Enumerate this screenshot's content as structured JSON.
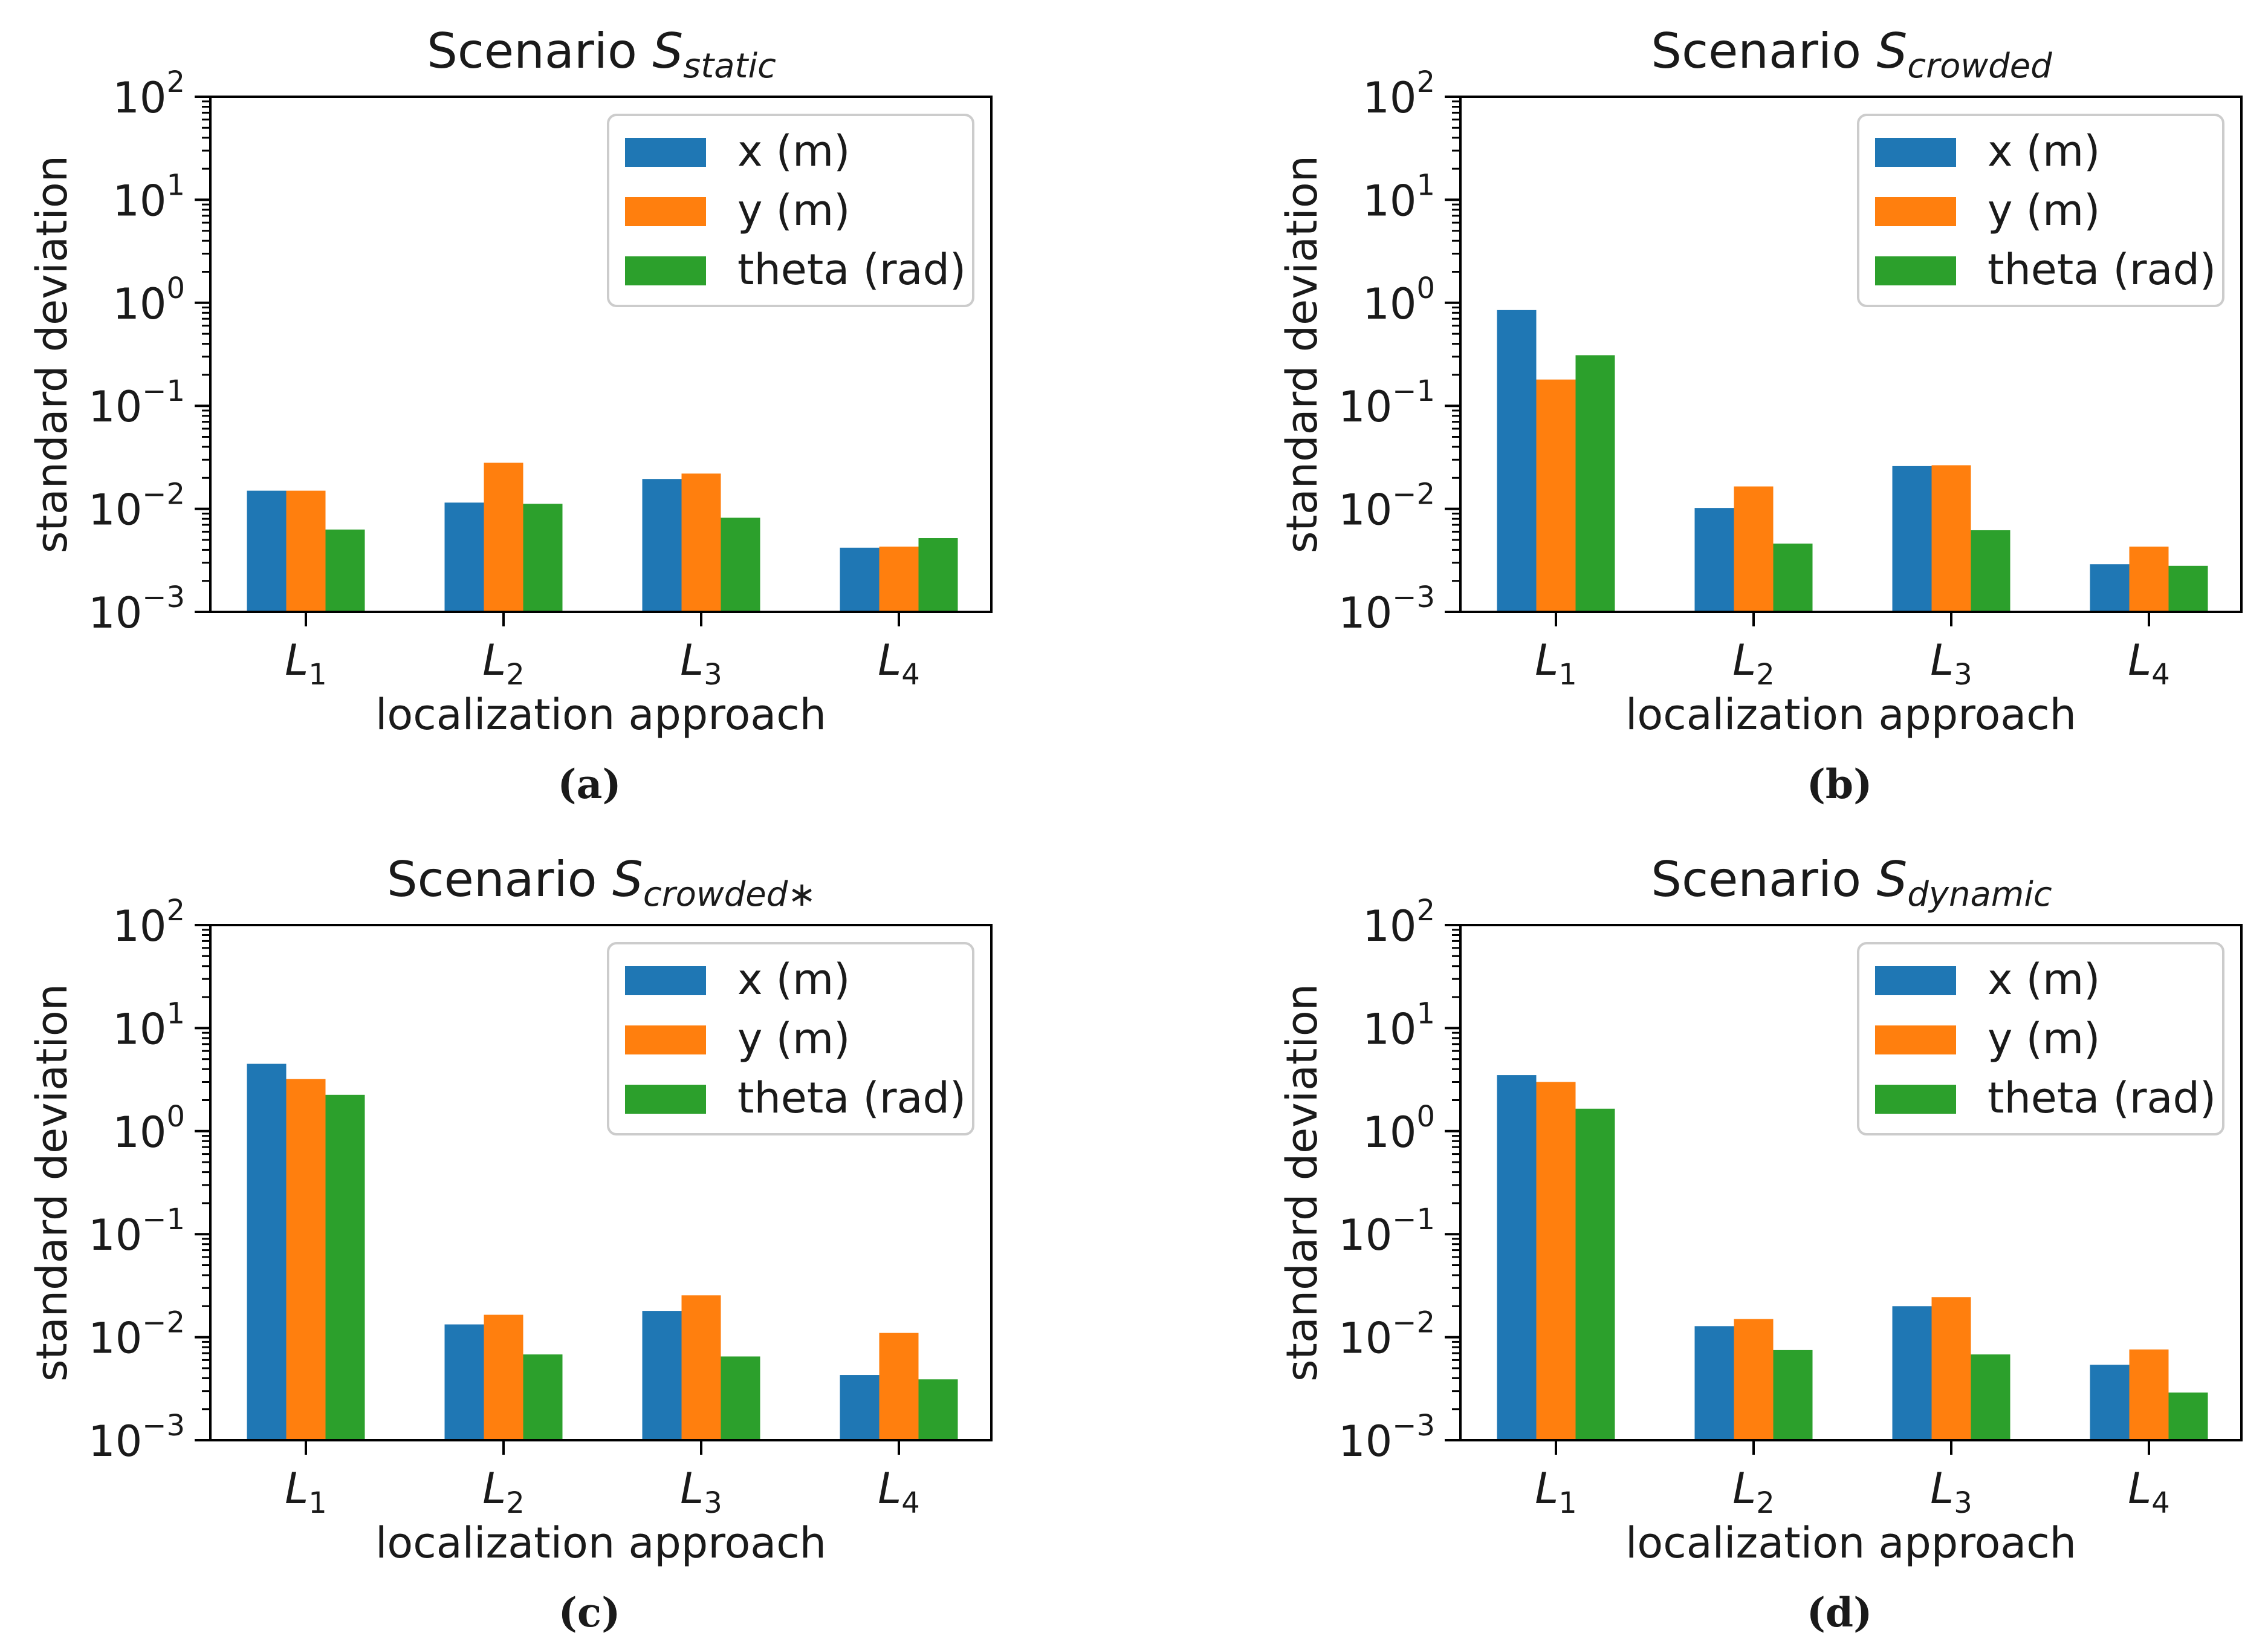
{
  "figure": {
    "series_colors": [
      "#1f77b4",
      "#ff7f0e",
      "#2ca02c"
    ]
  },
  "chart_data": [
    {
      "type": "bar",
      "panel": "(a)",
      "caption": "(a)",
      "title": "Scenario S",
      "title_sub": "static",
      "xlabel": "localization approach",
      "ylabel": "standard deviation",
      "yscale": "log",
      "ylim": [
        0.001,
        100
      ],
      "categories": [
        {
          "base": "L",
          "sub": "1"
        },
        {
          "base": "L",
          "sub": "2"
        },
        {
          "base": "L",
          "sub": "3"
        },
        {
          "base": "L",
          "sub": "4"
        }
      ],
      "series": [
        {
          "name": "x (m)",
          "values": [
            0.015,
            0.0115,
            0.0195,
            0.0042
          ]
        },
        {
          "name": "y (m)",
          "values": [
            0.015,
            0.028,
            0.022,
            0.0043
          ]
        },
        {
          "name": "theta (rad)",
          "values": [
            0.0063,
            0.0112,
            0.0082,
            0.0052
          ]
        }
      ],
      "legend": "top-right",
      "ytick_labels": [
        {
          "base": "10",
          "exp": "−3"
        },
        {
          "base": "10",
          "exp": "−2"
        },
        {
          "base": "10",
          "exp": "−1"
        },
        {
          "base": "10",
          "exp": "0"
        },
        {
          "base": "10",
          "exp": "1"
        },
        {
          "base": "10",
          "exp": "2"
        }
      ]
    },
    {
      "type": "bar",
      "panel": "(b)",
      "caption": "(b)",
      "title": "Scenario S",
      "title_sub": "crowded",
      "xlabel": "localization approach",
      "ylabel": "standard deviation",
      "yscale": "log",
      "ylim": [
        0.001,
        100
      ],
      "categories": [
        {
          "base": "L",
          "sub": "1"
        },
        {
          "base": "L",
          "sub": "2"
        },
        {
          "base": "L",
          "sub": "3"
        },
        {
          "base": "L",
          "sub": "4"
        }
      ],
      "series": [
        {
          "name": "x (m)",
          "values": [
            0.85,
            0.0102,
            0.026,
            0.0029
          ]
        },
        {
          "name": "y (m)",
          "values": [
            0.18,
            0.0165,
            0.0265,
            0.0043
          ]
        },
        {
          "name": "theta (rad)",
          "values": [
            0.31,
            0.0046,
            0.0062,
            0.0028
          ]
        }
      ],
      "legend": "top-right",
      "ytick_labels": [
        {
          "base": "10",
          "exp": "−3"
        },
        {
          "base": "10",
          "exp": "−2"
        },
        {
          "base": "10",
          "exp": "−1"
        },
        {
          "base": "10",
          "exp": "0"
        },
        {
          "base": "10",
          "exp": "1"
        },
        {
          "base": "10",
          "exp": "2"
        }
      ]
    },
    {
      "type": "bar",
      "panel": "(c)",
      "caption": "(c)",
      "title": "Scenario S",
      "title_sub": "crowded∗",
      "xlabel": "localization approach",
      "ylabel": "standard deviation",
      "yscale": "log",
      "ylim": [
        0.001,
        100
      ],
      "categories": [
        {
          "base": "L",
          "sub": "1"
        },
        {
          "base": "L",
          "sub": "2"
        },
        {
          "base": "L",
          "sub": "3"
        },
        {
          "base": "L",
          "sub": "4"
        }
      ],
      "series": [
        {
          "name": "x (m)",
          "values": [
            4.5,
            0.0133,
            0.018,
            0.0043
          ]
        },
        {
          "name": "y (m)",
          "values": [
            3.2,
            0.0165,
            0.0255,
            0.011
          ]
        },
        {
          "name": "theta (rad)",
          "values": [
            2.25,
            0.0068,
            0.0065,
            0.0039
          ]
        }
      ],
      "legend": "top-right",
      "ytick_labels": [
        {
          "base": "10",
          "exp": "−3"
        },
        {
          "base": "10",
          "exp": "−2"
        },
        {
          "base": "10",
          "exp": "−1"
        },
        {
          "base": "10",
          "exp": "0"
        },
        {
          "base": "10",
          "exp": "1"
        },
        {
          "base": "10",
          "exp": "2"
        }
      ]
    },
    {
      "type": "bar",
      "panel": "(d)",
      "caption": "(d)",
      "title": "Scenario S",
      "title_sub": "dynamic",
      "xlabel": "localization approach",
      "ylabel": "standard deviation",
      "yscale": "log",
      "ylim": [
        0.001,
        100
      ],
      "categories": [
        {
          "base": "L",
          "sub": "1"
        },
        {
          "base": "L",
          "sub": "2"
        },
        {
          "base": "L",
          "sub": "3"
        },
        {
          "base": "L",
          "sub": "4"
        }
      ],
      "series": [
        {
          "name": "x (m)",
          "values": [
            3.5,
            0.0128,
            0.02,
            0.0054
          ]
        },
        {
          "name": "y (m)",
          "values": [
            3.0,
            0.015,
            0.0245,
            0.0076
          ]
        },
        {
          "name": "theta (rad)",
          "values": [
            1.65,
            0.0075,
            0.0068,
            0.0029
          ]
        }
      ],
      "legend": "top-right",
      "ytick_labels": [
        {
          "base": "10",
          "exp": "−3"
        },
        {
          "base": "10",
          "exp": "−2"
        },
        {
          "base": "10",
          "exp": "−1"
        },
        {
          "base": "10",
          "exp": "0"
        },
        {
          "base": "10",
          "exp": "1"
        },
        {
          "base": "10",
          "exp": "2"
        }
      ]
    }
  ]
}
